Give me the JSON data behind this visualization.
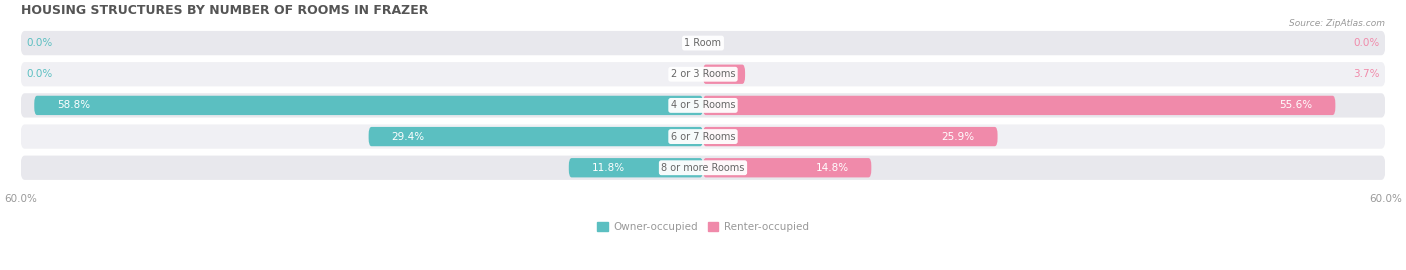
{
  "title": "HOUSING STRUCTURES BY NUMBER OF ROOMS IN FRAZER",
  "source": "Source: ZipAtlas.com",
  "categories": [
    "1 Room",
    "2 or 3 Rooms",
    "4 or 5 Rooms",
    "6 or 7 Rooms",
    "8 or more Rooms"
  ],
  "owner_values": [
    0.0,
    0.0,
    58.8,
    29.4,
    11.8
  ],
  "renter_values": [
    0.0,
    3.7,
    55.6,
    25.9,
    14.8
  ],
  "owner_color": "#5bbfc1",
  "renter_color": "#f08aaa",
  "row_bg_color": "#e8e8ed",
  "row_bg_color2": "#f0f0f4",
  "axis_limit": 60.0,
  "label_color_owner": "#5bbfc1",
  "label_color_renter": "#f08aaa",
  "title_color": "#555555",
  "axis_label_color": "#999999",
  "category_label_color": "#666666",
  "legend_owner": "Owner-occupied",
  "legend_renter": "Renter-occupied",
  "title_fontsize": 9,
  "bar_label_fontsize": 7.5,
  "category_fontsize": 7,
  "axis_tick_fontsize": 7.5,
  "legend_fontsize": 7.5
}
